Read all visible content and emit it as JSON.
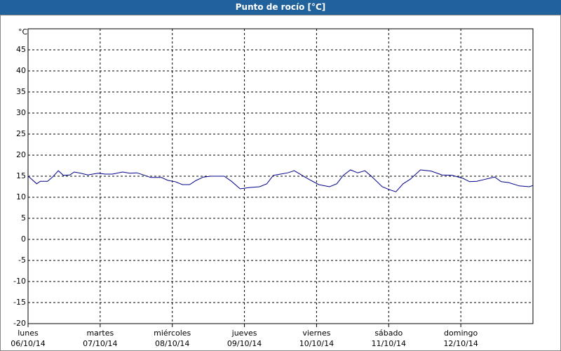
{
  "chart_data": {
    "type": "line",
    "title": "Punto de rocío [°C]",
    "y_label": "°C",
    "x": [
      0,
      0.05,
      0.12,
      0.17,
      0.27,
      0.34,
      0.42,
      0.49,
      0.58,
      0.64,
      0.73,
      0.83,
      0.97,
      1.07,
      1.17,
      1.31,
      1.41,
      1.51,
      1.6,
      1.7,
      1.85,
      1.94,
      2.04,
      2.14,
      2.24,
      2.33,
      2.43,
      2.53,
      2.62,
      2.72,
      2.82,
      2.94,
      3.06,
      3.21,
      3.31,
      3.4,
      3.5,
      3.6,
      3.69,
      3.79,
      3.89,
      4.03,
      4.18,
      4.28,
      4.37,
      4.47,
      4.57,
      4.67,
      4.76,
      4.91,
      5.01,
      5.1,
      5.2,
      5.3,
      5.44,
      5.59,
      5.74,
      5.88,
      6.03,
      6.12,
      6.22,
      6.32,
      6.47,
      6.56,
      6.66,
      6.81,
      6.95,
      7
    ],
    "series": [
      {
        "name": "Punto de rocío",
        "color": "#00008b",
        "values": [
          15,
          14.3,
          13.2,
          13.8,
          13.8,
          14.8,
          16.3,
          15.2,
          15.3,
          16,
          15.7,
          15.3,
          15.7,
          15.5,
          15.5,
          16,
          15.7,
          15.8,
          15.3,
          14.7,
          14.7,
          14,
          13.7,
          13,
          13,
          14,
          14.8,
          15,
          15,
          15,
          13.8,
          12,
          12.3,
          12.5,
          13.2,
          15.2,
          15.5,
          15.8,
          16.3,
          15.3,
          14.3,
          13,
          12.5,
          13.2,
          15.2,
          16.5,
          15.8,
          16.3,
          15,
          12.5,
          11.8,
          11.3,
          13.2,
          14.3,
          16.5,
          16.2,
          15.3,
          15.2,
          14.5,
          13.7,
          13.8,
          14.2,
          14.8,
          13.7,
          13.5,
          12.7,
          12.5,
          12.8
        ]
      }
    ],
    "xlim": [
      0,
      7
    ],
    "xticks": [
      {
        "value": 0,
        "label": "lunes",
        "date": "06/10/14"
      },
      {
        "value": 1,
        "label": "martes",
        "date": "07/10/14"
      },
      {
        "value": 2,
        "label": "miércoles",
        "date": "08/10/14"
      },
      {
        "value": 3,
        "label": "jueves",
        "date": "09/10/14"
      },
      {
        "value": 4,
        "label": "viernes",
        "date": "10/10/14"
      },
      {
        "value": 5,
        "label": "sábado",
        "date": "11/10/14"
      },
      {
        "value": 6,
        "label": "domingo",
        "date": "12/10/14"
      }
    ],
    "ylim": [
      -20,
      50
    ],
    "yticks": [
      -20,
      -15,
      -10,
      -5,
      0,
      5,
      10,
      15,
      20,
      25,
      30,
      35,
      40,
      45
    ],
    "grid": true
  }
}
